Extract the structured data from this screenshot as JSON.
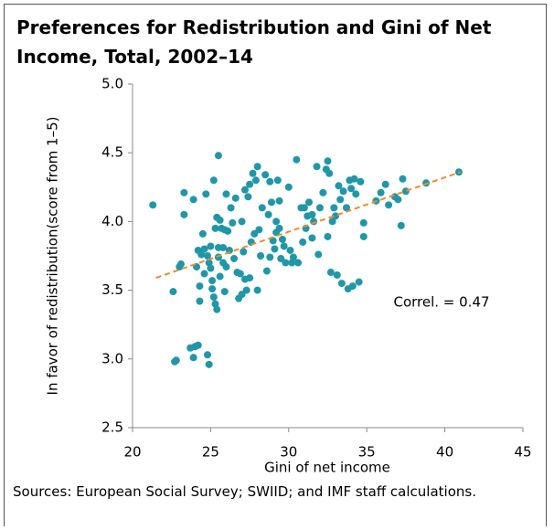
{
  "chart_data": {
    "type": "scatter",
    "title": "Preferences for Redistribution and Gini of Net Income, Total, 2002–14",
    "x_label": "Gini of net income",
    "y_label": "In favor of redistribution(score from 1–5)",
    "annotation": "Correl. = 0.47",
    "source": "Sources: European Social Survey; SWIID; and IMF staff calculations.",
    "color": "#1f97a8",
    "trendline": {
      "x": [
        21.5,
        41
      ],
      "y": [
        3.59,
        4.36
      ],
      "color": "#f08a2c"
    },
    "xlim": [
      20,
      45
    ],
    "xticks": [
      20,
      25,
      30,
      35,
      40,
      45
    ],
    "ylim": [
      2.5,
      5
    ],
    "yticks": [
      2.5,
      {
        "value": 3,
        "label": "3.0"
      },
      3.5,
      {
        "value": 4,
        "label": "4.0"
      },
      4.5,
      {
        "value": 5,
        "label": "5.0"
      }
    ],
    "grid": false,
    "x": [
      21.3,
      22.6,
      22.7,
      22.8,
      23.0,
      23.1,
      23.3,
      23.3,
      23.7,
      23.9,
      23.9,
      24.0,
      24.1,
      24.2,
      24.2,
      24.3,
      24.3,
      24.4,
      24.5,
      24.6,
      24.6,
      24.7,
      24.8,
      24.8,
      24.9,
      24.9,
      25.0,
      25.0,
      25.1,
      25.1,
      25.2,
      25.2,
      25.3,
      25.3,
      25.4,
      25.4,
      25.5,
      25.5,
      25.5,
      25.6,
      25.6,
      25.7,
      25.8,
      25.8,
      25.9,
      25.9,
      26.0,
      26.0,
      26.1,
      26.2,
      26.3,
      26.4,
      26.5,
      26.6,
      26.7,
      26.8,
      26.9,
      27.0,
      27.0,
      27.1,
      27.2,
      27.2,
      27.3,
      27.4,
      27.5,
      27.5,
      27.6,
      27.7,
      27.8,
      27.9,
      28.0,
      28.0,
      28.1,
      28.2,
      28.3,
      28.5,
      28.6,
      28.7,
      28.8,
      28.8,
      28.9,
      29.0,
      29.1,
      29.2,
      29.2,
      29.3,
      29.4,
      29.4,
      29.5,
      29.6,
      29.7,
      29.8,
      30.0,
      30.1,
      30.2,
      30.3,
      30.5,
      30.6,
      30.8,
      30.9,
      31.0,
      31.1,
      31.2,
      31.3,
      31.5,
      31.5,
      31.6,
      31.8,
      31.9,
      32.0,
      32.2,
      32.4,
      32.5,
      32.5,
      32.6,
      32.7,
      32.8,
      32.9,
      33.0,
      33.1,
      33.2,
      33.3,
      33.4,
      33.5,
      33.7,
      33.8,
      33.9,
      34.0,
      34.1,
      34.2,
      34.3,
      34.5,
      34.6,
      34.8,
      34.8,
      35.6,
      35.9,
      36.2,
      36.4,
      36.8,
      37.0,
      37.2,
      37.3,
      37.5,
      38.8,
      40.9
    ],
    "values": [
      4.12,
      3.49,
      2.98,
      2.99,
      3.67,
      3.69,
      4.21,
      4.05,
      3.08,
      3.01,
      4.16,
      3.09,
      3.67,
      3.79,
      3.1,
      3.53,
      3.42,
      3.76,
      3.91,
      3.62,
      3.8,
      4.2,
      3.75,
      3.03,
      2.96,
      3.7,
      3.82,
      3.66,
      3.51,
      3.57,
      4.3,
      3.45,
      3.4,
      3.95,
      4.03,
      3.36,
      4.48,
      3.74,
      3.81,
      4.01,
      3.6,
      3.95,
      3.81,
      3.7,
      3.49,
      3.94,
      4.2,
      3.67,
      3.93,
      3.79,
      4.1,
      3.99,
      3.73,
      4.17,
      3.63,
      3.44,
      3.62,
      4.0,
      3.47,
      3.78,
      3.58,
      4.23,
      3.5,
      4.18,
      4.27,
      3.59,
      3.85,
      4.35,
      3.91,
      4.3,
      3.5,
      4.4,
      3.94,
      3.75,
      4.1,
      4.34,
      3.64,
      4.05,
      4.29,
      3.74,
      4.14,
      3.86,
      3.8,
      3.92,
      4.0,
      4.3,
      4.15,
      3.95,
      3.73,
      3.87,
      3.82,
      3.7,
      4.25,
      3.79,
      3.7,
      3.74,
      4.45,
      3.7,
      4.1,
      3.85,
      4.1,
      3.95,
      4.04,
      4.14,
      4.05,
      3.88,
      4.0,
      4.4,
      3.76,
      4.1,
      4.21,
      4.38,
      4.44,
      3.89,
      4.35,
      3.63,
      4.0,
      4.1,
      4.04,
      3.61,
      4.26,
      4.16,
      3.55,
      4.22,
      4.1,
      3.51,
      4.3,
      4.24,
      3.53,
      4.31,
      4.2,
      3.56,
      4.29,
      3.99,
      3.89,
      4.15,
      4.21,
      4.27,
      4.12,
      4.18,
      4.16,
      3.97,
      4.31,
      4.22,
      4.28,
      4.36
    ]
  }
}
